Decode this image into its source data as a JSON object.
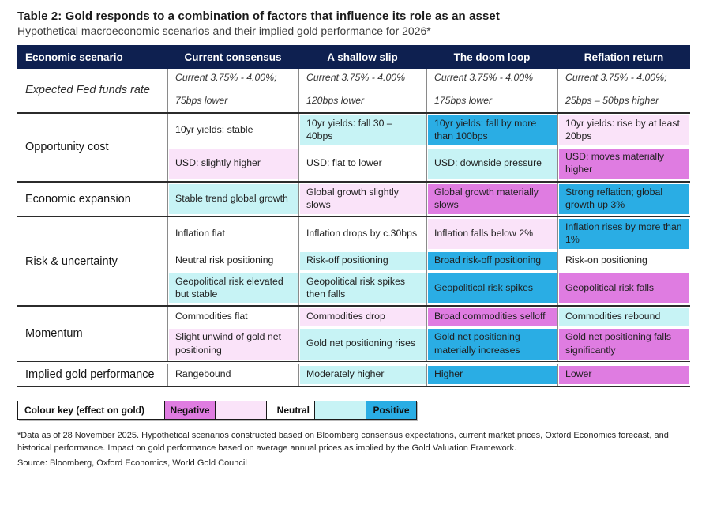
{
  "title": "Table 2: Gold responds to a combination of factors that influence its role as an asset",
  "subtitle": "Hypothetical macroeconomic scenarios and their implied gold performance for 2026*",
  "colors": {
    "header_bg": "#0e2050",
    "positive_strong": "#2aade4",
    "positive_mild": "#c7f3f5",
    "negative_mild": "#fae3f9",
    "negative_strong": "#df7ce1",
    "neutral": "#ffffff"
  },
  "table": {
    "columns": [
      "Economic scenario",
      "Current consensus",
      "A shallow slip",
      "The doom loop",
      "Reflation return"
    ],
    "groups": [
      {
        "label": "Expected Fed funds rate",
        "italic": true,
        "rows": [
          [
            {
              "lines": [
                "Current 3.75% - 4.00%;",
                "75bps lower"
              ]
            },
            {
              "lines": [
                "Current 3.75% - 4.00%",
                "120bps lower"
              ]
            },
            {
              "lines": [
                "Current 3.75% - 4.00%",
                "175bps lower"
              ]
            },
            {
              "lines": [
                "Current 3.75% - 4.00%;",
                "25bps – 50bps higher"
              ]
            }
          ]
        ]
      },
      {
        "label": "Opportunity cost",
        "rows": [
          [
            {
              "t": "10yr yields: stable",
              "tone": "neutral"
            },
            {
              "t": "10yr yields: fall 30 – 40bps",
              "tone": "pos1"
            },
            {
              "t": "10yr yields: fall by more than 100bps",
              "tone": "pos2"
            },
            {
              "t": "10yr yields: rise by at least 20bps",
              "tone": "neg1"
            }
          ],
          [
            {
              "t": "USD: slightly higher",
              "tone": "neg1"
            },
            {
              "t": "USD: flat to lower",
              "tone": "neutral"
            },
            {
              "t": "USD: downside pressure",
              "tone": "pos1"
            },
            {
              "t": "USD: moves materially higher",
              "tone": "neg2"
            }
          ]
        ]
      },
      {
        "label": "Economic expansion",
        "rows": [
          [
            {
              "t": "Stable trend global growth",
              "tone": "pos1"
            },
            {
              "t": "Global growth slightly slows",
              "tone": "neg1"
            },
            {
              "t": "Global growth materially slows",
              "tone": "neg2"
            },
            {
              "t": "Strong reflation; global growth up 3%",
              "tone": "pos2"
            }
          ]
        ]
      },
      {
        "label": "Risk & uncertainty",
        "rows": [
          [
            {
              "t": "Inflation flat",
              "tone": "neutral"
            },
            {
              "t": "Inflation drops by c.30bps",
              "tone": "neutral"
            },
            {
              "t": "Inflation falls below 2%",
              "tone": "neg1"
            },
            {
              "t": "Inflation rises by more than 1%",
              "tone": "pos2"
            }
          ],
          [
            {
              "t": "Neutral risk positioning",
              "tone": "neutral"
            },
            {
              "t": "Risk-off positioning",
              "tone": "pos1"
            },
            {
              "t": "Broad risk-off positioning",
              "tone": "pos2"
            },
            {
              "t": "Risk-on positioning",
              "tone": "neutral"
            }
          ],
          [
            {
              "t": "Geopolitical risk elevated but stable",
              "tone": "pos1"
            },
            {
              "t": "Geopolitical risk spikes then falls",
              "tone": "pos1"
            },
            {
              "t": "Geopolitical risk spikes",
              "tone": "pos2"
            },
            {
              "t": "Geopolitical risk falls",
              "tone": "neg2"
            }
          ]
        ]
      },
      {
        "label": "Momentum",
        "rows": [
          [
            {
              "t": "Commodities flat",
              "tone": "neutral"
            },
            {
              "t": "Commodities drop",
              "tone": "neg1"
            },
            {
              "t": "Broad commodities selloff",
              "tone": "neg2"
            },
            {
              "t": "Commodities rebound",
              "tone": "pos1"
            }
          ],
          [
            {
              "t": "Slight unwind of gold net positioning",
              "tone": "neg1"
            },
            {
              "t": "Gold net positioning rises",
              "tone": "pos1"
            },
            {
              "t": "Gold net positioning materially increases",
              "tone": "pos2"
            },
            {
              "t": "Gold net positioning falls significantly",
              "tone": "neg2"
            }
          ]
        ]
      },
      {
        "label": "Implied gold performance",
        "sep": "double",
        "rows": [
          [
            {
              "t": "Rangebound",
              "tone": "neutral"
            },
            {
              "t": "Moderately higher",
              "tone": "pos1"
            },
            {
              "t": "Higher",
              "tone": "pos2"
            },
            {
              "t": "Lower",
              "tone": "neg2"
            }
          ]
        ]
      }
    ]
  },
  "colour_key": {
    "label": "Colour key (effect on gold)",
    "segments": [
      {
        "text": "Negative",
        "tone": "neg2"
      },
      {
        "text": "",
        "tone": "neg1"
      },
      {
        "text": "Neutral",
        "tone": "neutral"
      },
      {
        "text": "",
        "tone": "pos1"
      },
      {
        "text": "Positive",
        "tone": "pos2"
      }
    ]
  },
  "footnote": "*Data as of 28 November 2025. Hypothetical scenarios constructed based on Bloomberg consensus expectations, current market prices, Oxford Economics forecast, and historical performance. Impact on gold performance based on average annual prices as implied by the Gold Valuation Framework.",
  "source": "Source: Bloomberg, Oxford Economics, World Gold Council"
}
